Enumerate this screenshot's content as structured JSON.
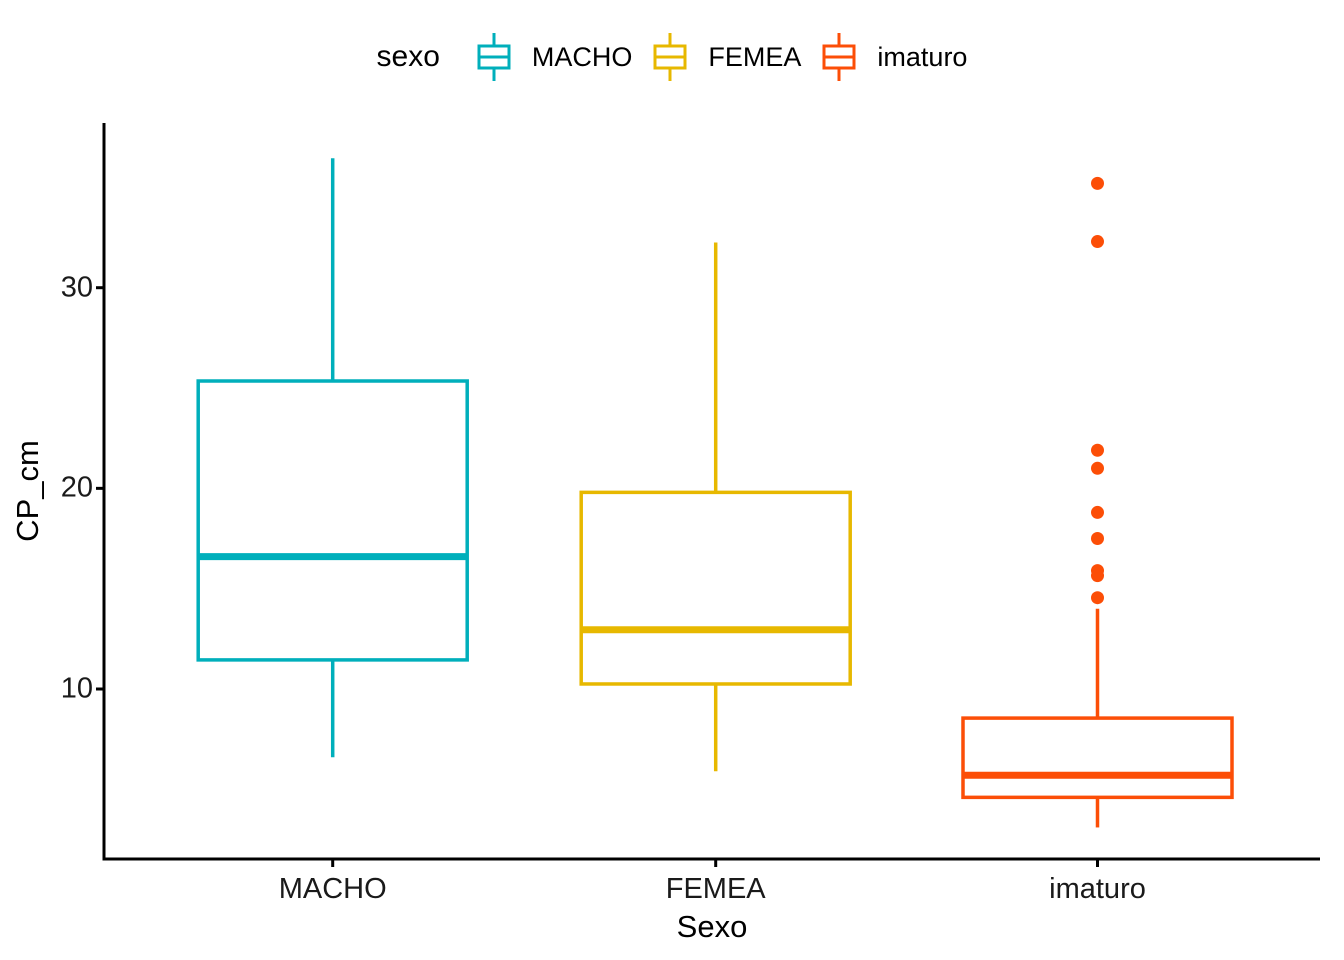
{
  "legend": {
    "title": "sexo",
    "entries": [
      {
        "label": "MACHO",
        "color": "#00AFBB"
      },
      {
        "label": "FEMEA",
        "color": "#E7B800"
      },
      {
        "label": "imaturo",
        "color": "#FC4E07"
      }
    ]
  },
  "chart_data": {
    "type": "boxplot",
    "title": "",
    "xlabel": "Sexo",
    "ylabel": "CP_cm",
    "categories": [
      "MACHO",
      "FEMEA",
      "imaturo"
    ],
    "y_ticks": [
      30,
      20,
      10
    ],
    "ylim": [
      1.5,
      38.2
    ],
    "grid": false,
    "theme": "classic",
    "legend_position": "top",
    "axis_color": "#000000",
    "series": [
      {
        "name": "MACHO",
        "color": "#00AFBB",
        "whisker_min": 6.6,
        "q1": 11.45,
        "median": 16.6,
        "q3": 25.35,
        "whisker_max": 36.45,
        "outliers": []
      },
      {
        "name": "FEMEA",
        "color": "#E7B800",
        "whisker_min": 5.9,
        "q1": 10.25,
        "median": 12.95,
        "q3": 19.8,
        "whisker_max": 32.25,
        "outliers": []
      },
      {
        "name": "imaturo",
        "color": "#FC4E07",
        "whisker_min": 3.1,
        "q1": 4.6,
        "median": 5.7,
        "q3": 8.55,
        "whisker_max": 14.0,
        "outliers": [
          35.2,
          32.3,
          21.9,
          21.0,
          18.8,
          17.5,
          15.9,
          15.65,
          14.55
        ]
      }
    ]
  }
}
